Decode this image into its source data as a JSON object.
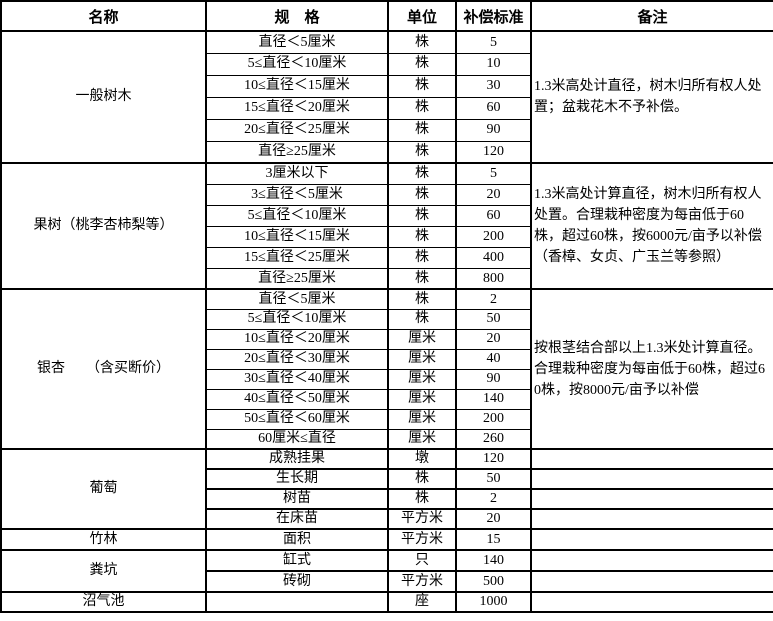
{
  "header": {
    "name": "名称",
    "spec": "规　格",
    "unit": "单位",
    "standard": "补偿标准",
    "remark": "备注"
  },
  "sections": [
    {
      "name": "一般树木",
      "merged_remark": true,
      "remark": "1.3米高处计直径，树木归所有权人处置；盆栽花木不予补偿。",
      "rows": [
        {
          "spec": "直径＜5厘米",
          "unit": "株",
          "value": "5"
        },
        {
          "spec": "5≤直径＜10厘米",
          "unit": "株",
          "value": "10"
        },
        {
          "spec": "10≤直径＜15厘米",
          "unit": "株",
          "value": "30"
        },
        {
          "spec": "15≤直径＜20厘米",
          "unit": "株",
          "value": "60"
        },
        {
          "spec": "20≤直径＜25厘米",
          "unit": "株",
          "value": "90"
        },
        {
          "spec": "直径≥25厘米",
          "unit": "株",
          "value": "120"
        }
      ]
    },
    {
      "name": "果树（桃李杏柿梨等）",
      "merged_remark": true,
      "remark": "1.3米高处计算直径，树木归所有权人处置。合理栽种密度为每亩低于60株，超过60株，按6000元/亩予以补偿（香樟、女贞、广玉兰等参照）",
      "rows": [
        {
          "spec": "3厘米以下",
          "unit": "株",
          "value": "5"
        },
        {
          "spec": "3≤直径＜5厘米",
          "unit": "株",
          "value": "20"
        },
        {
          "spec": "5≤直径＜10厘米",
          "unit": "株",
          "value": "60"
        },
        {
          "spec": "10≤直径＜15厘米",
          "unit": "株",
          "value": "200"
        },
        {
          "spec": "15≤直径＜25厘米",
          "unit": "株",
          "value": "400"
        },
        {
          "spec": "直径≥25厘米",
          "unit": "株",
          "value": "800"
        }
      ]
    },
    {
      "name": "银杏　　（含买断价）",
      "merged_remark": true,
      "remark": "按根茎结合部以上1.3米处计算直径。合理栽种密度为每亩低于60株，超过60株，按8000元/亩予以补偿",
      "rows": [
        {
          "spec": "直径＜5厘米",
          "unit": "株",
          "value": "2"
        },
        {
          "spec": "5≤直径＜10厘米",
          "unit": "株",
          "value": "50"
        },
        {
          "spec": "10≤直径＜20厘米",
          "unit": "厘米",
          "value": "20"
        },
        {
          "spec": "20≤直径＜30厘米",
          "unit": "厘米",
          "value": "40"
        },
        {
          "spec": "30≤直径＜40厘米",
          "unit": "厘米",
          "value": "90"
        },
        {
          "spec": "40≤直径＜50厘米",
          "unit": "厘米",
          "value": "140"
        },
        {
          "spec": "50≤直径＜60厘米",
          "unit": "厘米",
          "value": "200"
        },
        {
          "spec": "60厘米≤直径",
          "unit": "厘米",
          "value": "260"
        }
      ]
    },
    {
      "name": "葡萄",
      "merged_remark": false,
      "remark": "",
      "rows": [
        {
          "spec": "成熟挂果",
          "unit": "墩",
          "value": "120"
        },
        {
          "spec": "生长期",
          "unit": "株",
          "value": "50"
        },
        {
          "spec": "树苗",
          "unit": "株",
          "value": "2"
        },
        {
          "spec": "在床苗",
          "unit": "平方米",
          "value": "20"
        }
      ]
    },
    {
      "name": "竹林",
      "merged_remark": false,
      "remark": "",
      "rows": [
        {
          "spec": "面积",
          "unit": "平方米",
          "value": "15"
        }
      ]
    },
    {
      "name": "粪坑",
      "merged_remark": false,
      "remark": "",
      "rows": [
        {
          "spec": "缸式",
          "unit": "只",
          "value": "140"
        },
        {
          "spec": "砖砌",
          "unit": "平方米",
          "value": "500"
        }
      ]
    },
    {
      "name": "沼气池",
      "merged_remark": false,
      "remark": "",
      "rows": [
        {
          "spec": "",
          "unit": "座",
          "value": "1000"
        }
      ]
    }
  ]
}
